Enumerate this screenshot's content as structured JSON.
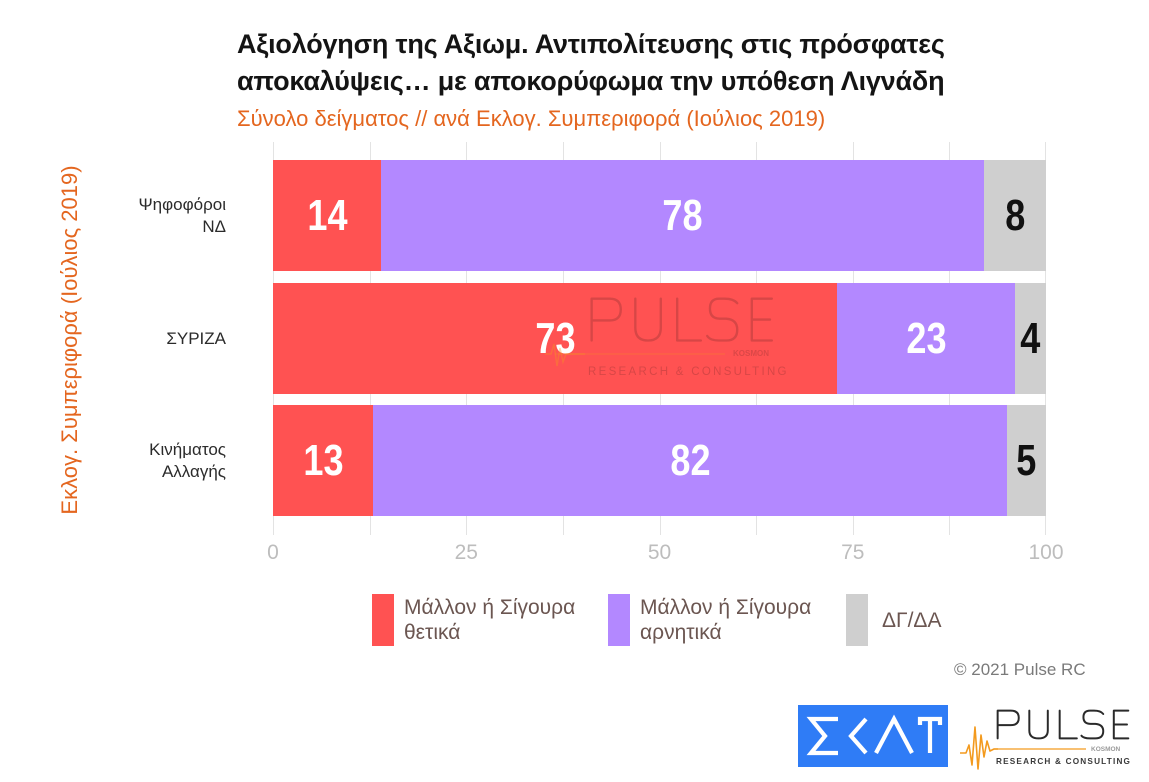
{
  "title": {
    "line1": "Αξιολόγηση της Αξιωμ. Αντιπολίτευσης στις πρόσφατες",
    "line2": "αποκαλύψεις… με αποκορύφωμα την υπόθεση Λιγνάδη",
    "subtitle": "Σύνολο δείγματος // ανά Εκλογ. Συμπεριφορά (Ιούλιος 2019)"
  },
  "y_axis": {
    "title": "Εκλογ. Συμπεριφορά (Ιούλιος 2019)",
    "labels": [
      [
        "Ψηφοφόροι",
        "ΝΔ"
      ],
      [
        "ΣΥΡΙΖΑ"
      ],
      [
        "Κινήματος",
        "Αλλαγής"
      ]
    ]
  },
  "x_axis": {
    "ticks": [
      0,
      25,
      50,
      75,
      100
    ]
  },
  "legend": [
    {
      "lines": [
        "Μάλλον ή Σίγουρα",
        "θετικά"
      ],
      "color": "#ff5252"
    },
    {
      "lines": [
        "Μάλλον ή Σίγουρα",
        "αρνητικά"
      ],
      "color": "#b388ff"
    },
    {
      "lines": [
        "ΔΓ/ΔΑ"
      ],
      "color": "#cfcfcf"
    }
  ],
  "watermark": {
    "brand": "PULSE",
    "tag": "KOSMON",
    "sub": "RESEARCH & CONSULTING"
  },
  "logos": {
    "skai": {
      "text": "ΣΚΑΪ",
      "color": "#2f7cf6"
    },
    "pulse": {
      "brand": "PULSE",
      "tag": "KOSMON",
      "sub": "RESEARCH & CONSULTING",
      "accent": "#f39a1e"
    }
  },
  "copyright": "© 2021 Pulse RC",
  "colors": {
    "title": "#141414",
    "accent_orange": "#e4661f",
    "legend_text": "#6b5651",
    "grid": "#e3e3e3",
    "tick": "#bdbdbd"
  },
  "chart_data": {
    "type": "bar",
    "orientation": "horizontal",
    "stacked": true,
    "title": "Αξιολόγηση της Αξιωμ. Αντιπολίτευσης στις πρόσφατες αποκαλύψεις… με αποκορύφωμα την υπόθεση Λιγνάδη",
    "subtitle": "Σύνολο δείγματος // ανά Εκλογ. Συμπεριφορά (Ιούλιος 2019)",
    "categories": [
      "Ψηφοφόροι ΝΔ",
      "ΣΥΡΙΖΑ",
      "Κινήματος Αλλαγής"
    ],
    "series": [
      {
        "name": "Μάλλον ή Σίγουρα θετικά",
        "values": [
          14,
          73,
          13
        ],
        "color": "#ff5252",
        "label_color": "#ffffff"
      },
      {
        "name": "Μάλλον ή Σίγουρα αρνητικά",
        "values": [
          78,
          23,
          82
        ],
        "color": "#b388ff",
        "label_color": "#ffffff"
      },
      {
        "name": "ΔΓ/ΔΑ",
        "values": [
          8,
          4,
          5
        ],
        "color": "#cfcfcf",
        "label_color": "#111111"
      }
    ],
    "xlabel": "",
    "ylabel": "Εκλογ. Συμπεριφορά (Ιούλιος 2019)",
    "xlim": [
      0,
      100
    ],
    "x_ticks": [
      0,
      25,
      50,
      75,
      100
    ],
    "grid": true,
    "grid_step": 12.5,
    "legend_position": "bottom"
  }
}
